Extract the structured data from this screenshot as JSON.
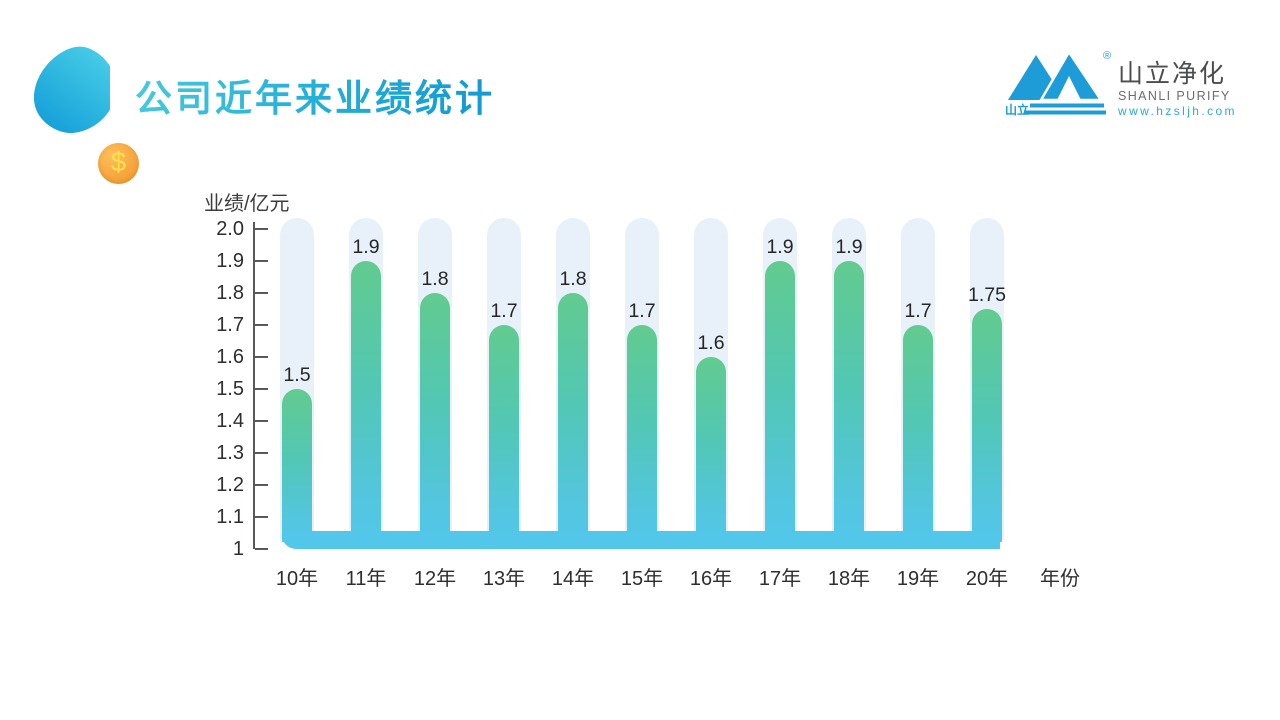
{
  "slide": {
    "title": "公司近年来业绩统计",
    "coin_symbol": "$"
  },
  "logo": {
    "mark_text": "山立",
    "registered": "®",
    "name_cn": "山立净化",
    "name_en": "SHANLI PURIFY",
    "website": "www.hzsljh.com",
    "brand_blue": "#1e9cd7"
  },
  "chart_data": {
    "type": "bar",
    "title": "",
    "ylabel": "业绩/亿元",
    "xlabel": "年份",
    "categories": [
      "10年",
      "11年",
      "12年",
      "13年",
      "14年",
      "15年",
      "16年",
      "17年",
      "18年",
      "19年",
      "20年"
    ],
    "values": [
      1.5,
      1.9,
      1.8,
      1.7,
      1.8,
      1.7,
      1.6,
      1.9,
      1.9,
      1.7,
      1.75
    ],
    "value_labels": [
      "1.5",
      "1.9",
      "1.8",
      "1.7",
      "1.8",
      "1.7",
      "1.6",
      "1.9",
      "1.9",
      "1.7",
      "1.75"
    ],
    "ylim": [
      1,
      2.0
    ],
    "ytick_labels": [
      "2.0",
      "1.9",
      "1.8",
      "1.7",
      "1.6",
      "1.5",
      "1.4",
      "1.3",
      "1.2",
      "1.1",
      "1"
    ],
    "grid": false,
    "legend": false,
    "background_track_max": 2.0,
    "colors": {
      "bar_top": "#62cb8f",
      "bar_bottom": "#53c7e9",
      "track": "#e8f1fa",
      "base_bar": "#53c7e9"
    }
  }
}
